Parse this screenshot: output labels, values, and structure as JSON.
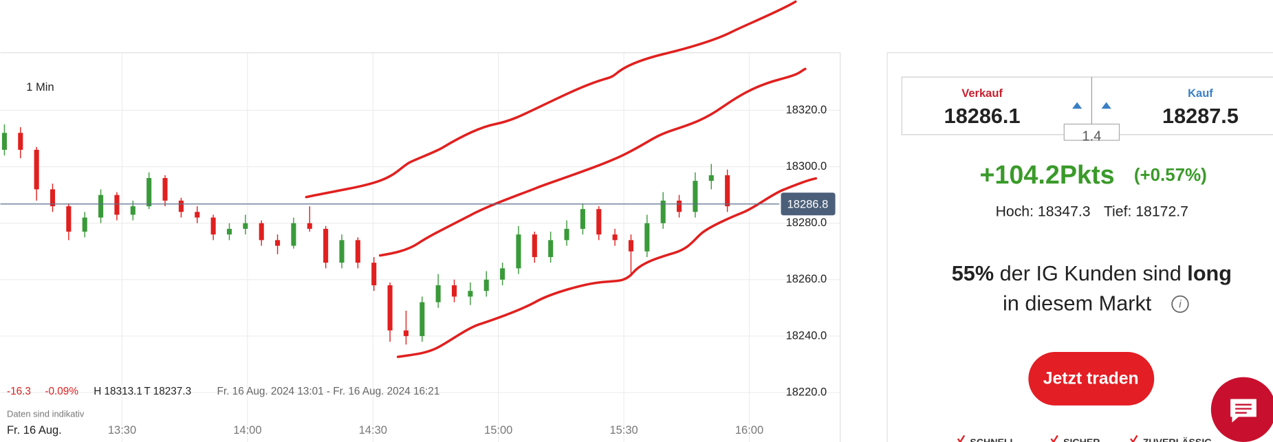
{
  "chart": {
    "type": "candlestick",
    "interval": "1 Min",
    "candles": [
      [
        18306,
        18315,
        18304,
        18312
      ],
      [
        18312,
        18314,
        18303,
        18306
      ],
      [
        18306,
        18307,
        18288,
        18292
      ],
      [
        18292,
        18294,
        18284,
        18286
      ],
      [
        18286,
        18287,
        18274,
        18277
      ],
      [
        18277,
        18284,
        18275,
        18282
      ],
      [
        18282,
        18292,
        18280,
        18290
      ],
      [
        18290,
        18291,
        18281,
        18283
      ],
      [
        18283,
        18288,
        18281,
        18286
      ],
      [
        18286,
        18298,
        18285,
        18296
      ],
      [
        18296,
        18297,
        18286,
        18288
      ],
      [
        18288,
        18289,
        18282,
        18284
      ],
      [
        18284,
        18286,
        18280,
        18282
      ],
      [
        18282,
        18283,
        18274,
        18276
      ],
      [
        18276,
        18280,
        18274,
        18278
      ],
      [
        18278,
        18283,
        18276,
        18280
      ],
      [
        18280,
        18281,
        18272,
        18274
      ],
      [
        18274,
        18276,
        18269,
        18272
      ],
      [
        18272,
        18282,
        18271,
        18280
      ],
      [
        18280,
        18286,
        18277,
        18278
      ],
      [
        18278,
        18279,
        18264,
        18266
      ],
      [
        18266,
        18276,
        18264,
        18274
      ],
      [
        18274,
        18275,
        18264,
        18266
      ],
      [
        18266,
        18268,
        18256,
        18258
      ],
      [
        18258,
        18259,
        18238,
        18242
      ],
      [
        18242,
        18249,
        18237,
        18240
      ],
      [
        18240,
        18254,
        18238,
        18252
      ],
      [
        18252,
        18262,
        18250,
        18258
      ],
      [
        18258,
        18260,
        18252,
        18254
      ],
      [
        18254,
        18259,
        18251,
        18256
      ],
      [
        18256,
        18263,
        18254,
        18260
      ],
      [
        18260,
        18266,
        18258,
        18264
      ],
      [
        18264,
        18279,
        18262,
        18276
      ],
      [
        18276,
        18277,
        18266,
        18268
      ],
      [
        18268,
        18277,
        18266,
        18274
      ],
      [
        18274,
        18281,
        18272,
        18278
      ],
      [
        18278,
        18287,
        18276,
        18285
      ],
      [
        18285,
        18286,
        18274,
        18276
      ],
      [
        18276,
        18278,
        18272,
        18274
      ],
      [
        18274,
        18276,
        18262,
        18270
      ],
      [
        18270,
        18283,
        18268,
        18280
      ],
      [
        18280,
        18291,
        18278,
        18288
      ],
      [
        18288,
        18290,
        18282,
        18284
      ],
      [
        18284,
        18298,
        18282,
        18295
      ],
      [
        18295,
        18301,
        18292,
        18297
      ],
      [
        18297,
        18299,
        18284,
        18286
      ]
    ],
    "up_color": "#3a9a3a",
    "down_color": "#e0201f",
    "yticks": [
      {
        "value": 18320,
        "label": "18320.0"
      },
      {
        "value": 18300,
        "label": "18300.0"
      },
      {
        "value": 18280,
        "label": "18280.0"
      },
      {
        "value": 18260,
        "label": "18260.0"
      },
      {
        "value": 18240,
        "label": "18240.0"
      },
      {
        "value": 18220,
        "label": "18220.0"
      }
    ],
    "xticks": [
      "13:30",
      "14:00",
      "14:30",
      "15:00",
      "15:30",
      "16:00"
    ],
    "current_price": 18286.8,
    "info": {
      "change": "-16.3",
      "change_pct": "-0.09%",
      "high": "H 18313.1",
      "low": "T 18237.3",
      "range": "Fr. 16 Aug. 2024 13:01 - Fr. 16 Aug. 2024 16:21"
    },
    "note": "Daten sind indikativ",
    "date": "Fr. 16 Aug."
  },
  "panel": {
    "sell_label": "Verkauf",
    "sell": "18286.1",
    "buy_label": "Kauf",
    "buy": "18287.5",
    "spread": "1.4",
    "change": "+104.2Pkts",
    "change_pct": "(+0.57%)",
    "high": "Hoch: 18347.3",
    "low": "Tief: 18172.7",
    "sentiment": {
      "pct": "55%",
      "text": " der IG Kunden sind ",
      "side": "long",
      "line2": "in diesem Markt"
    },
    "button": "Jetzt traden",
    "features": [
      "SCHNELL",
      "SICHER",
      "ZUVERLÄSSIG"
    ]
  }
}
